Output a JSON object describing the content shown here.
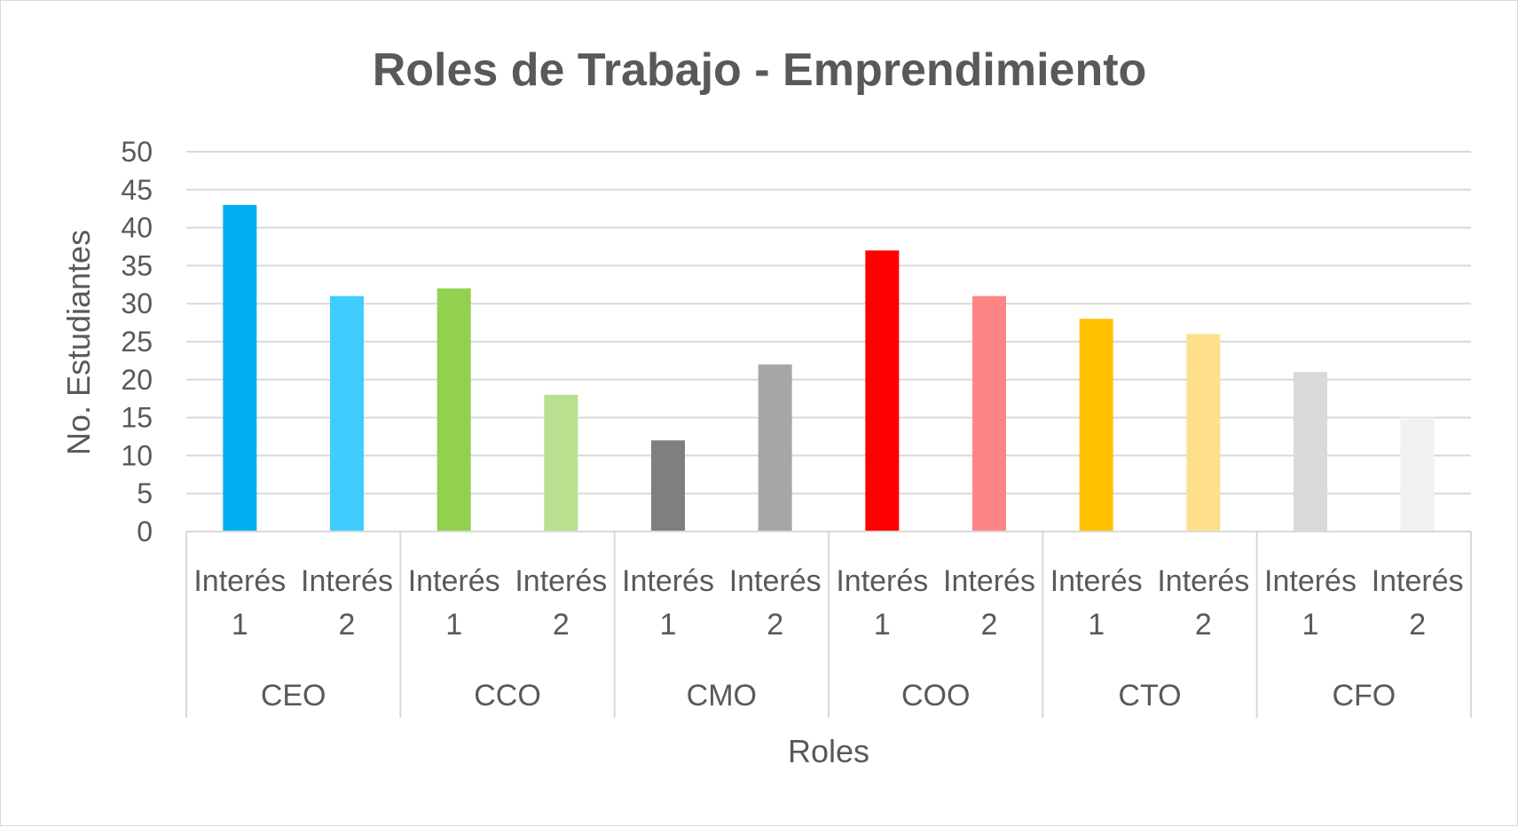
{
  "chart_data": {
    "type": "bar",
    "title": "Roles de Trabajo - Emprendimiento",
    "xlabel": "Roles",
    "ylabel": "No. Estudiantes",
    "ylim": [
      0,
      50
    ],
    "yticks": [
      0,
      5,
      10,
      15,
      20,
      25,
      30,
      35,
      40,
      45,
      50
    ],
    "grid": true,
    "groups": [
      {
        "name": "CEO",
        "bars": [
          {
            "label_line1": "Interés",
            "label_line2": "1",
            "value": 43,
            "color": "#00b0f0"
          },
          {
            "label_line1": "Interés",
            "label_line2": "2",
            "value": 31,
            "color": "#3fcdff"
          }
        ]
      },
      {
        "name": "CCO",
        "bars": [
          {
            "label_line1": "Interés",
            "label_line2": "1",
            "value": 32,
            "color": "#92d050"
          },
          {
            "label_line1": "Interés",
            "label_line2": "2",
            "value": 18,
            "color": "#b8e08e"
          }
        ]
      },
      {
        "name": "CMO",
        "bars": [
          {
            "label_line1": "Interés",
            "label_line2": "1",
            "value": 12,
            "color": "#7f7f7f"
          },
          {
            "label_line1": "Interés",
            "label_line2": "2",
            "value": 22,
            "color": "#a6a6a6"
          }
        ]
      },
      {
        "name": "COO",
        "bars": [
          {
            "label_line1": "Interés",
            "label_line2": "1",
            "value": 37,
            "color": "#ff0000"
          },
          {
            "label_line1": "Interés",
            "label_line2": "2",
            "value": 31,
            "color": "#ff8585"
          }
        ]
      },
      {
        "name": "CTO",
        "bars": [
          {
            "label_line1": "Interés",
            "label_line2": "1",
            "value": 28,
            "color": "#ffc000"
          },
          {
            "label_line1": "Interés",
            "label_line2": "2",
            "value": 26,
            "color": "#ffe08a"
          }
        ]
      },
      {
        "name": "CFO",
        "bars": [
          {
            "label_line1": "Interés",
            "label_line2": "1",
            "value": 21,
            "color": "#d9d9d9"
          },
          {
            "label_line1": "Interés",
            "label_line2": "2",
            "value": 15,
            "color": "#f2f2f2"
          }
        ]
      }
    ]
  }
}
